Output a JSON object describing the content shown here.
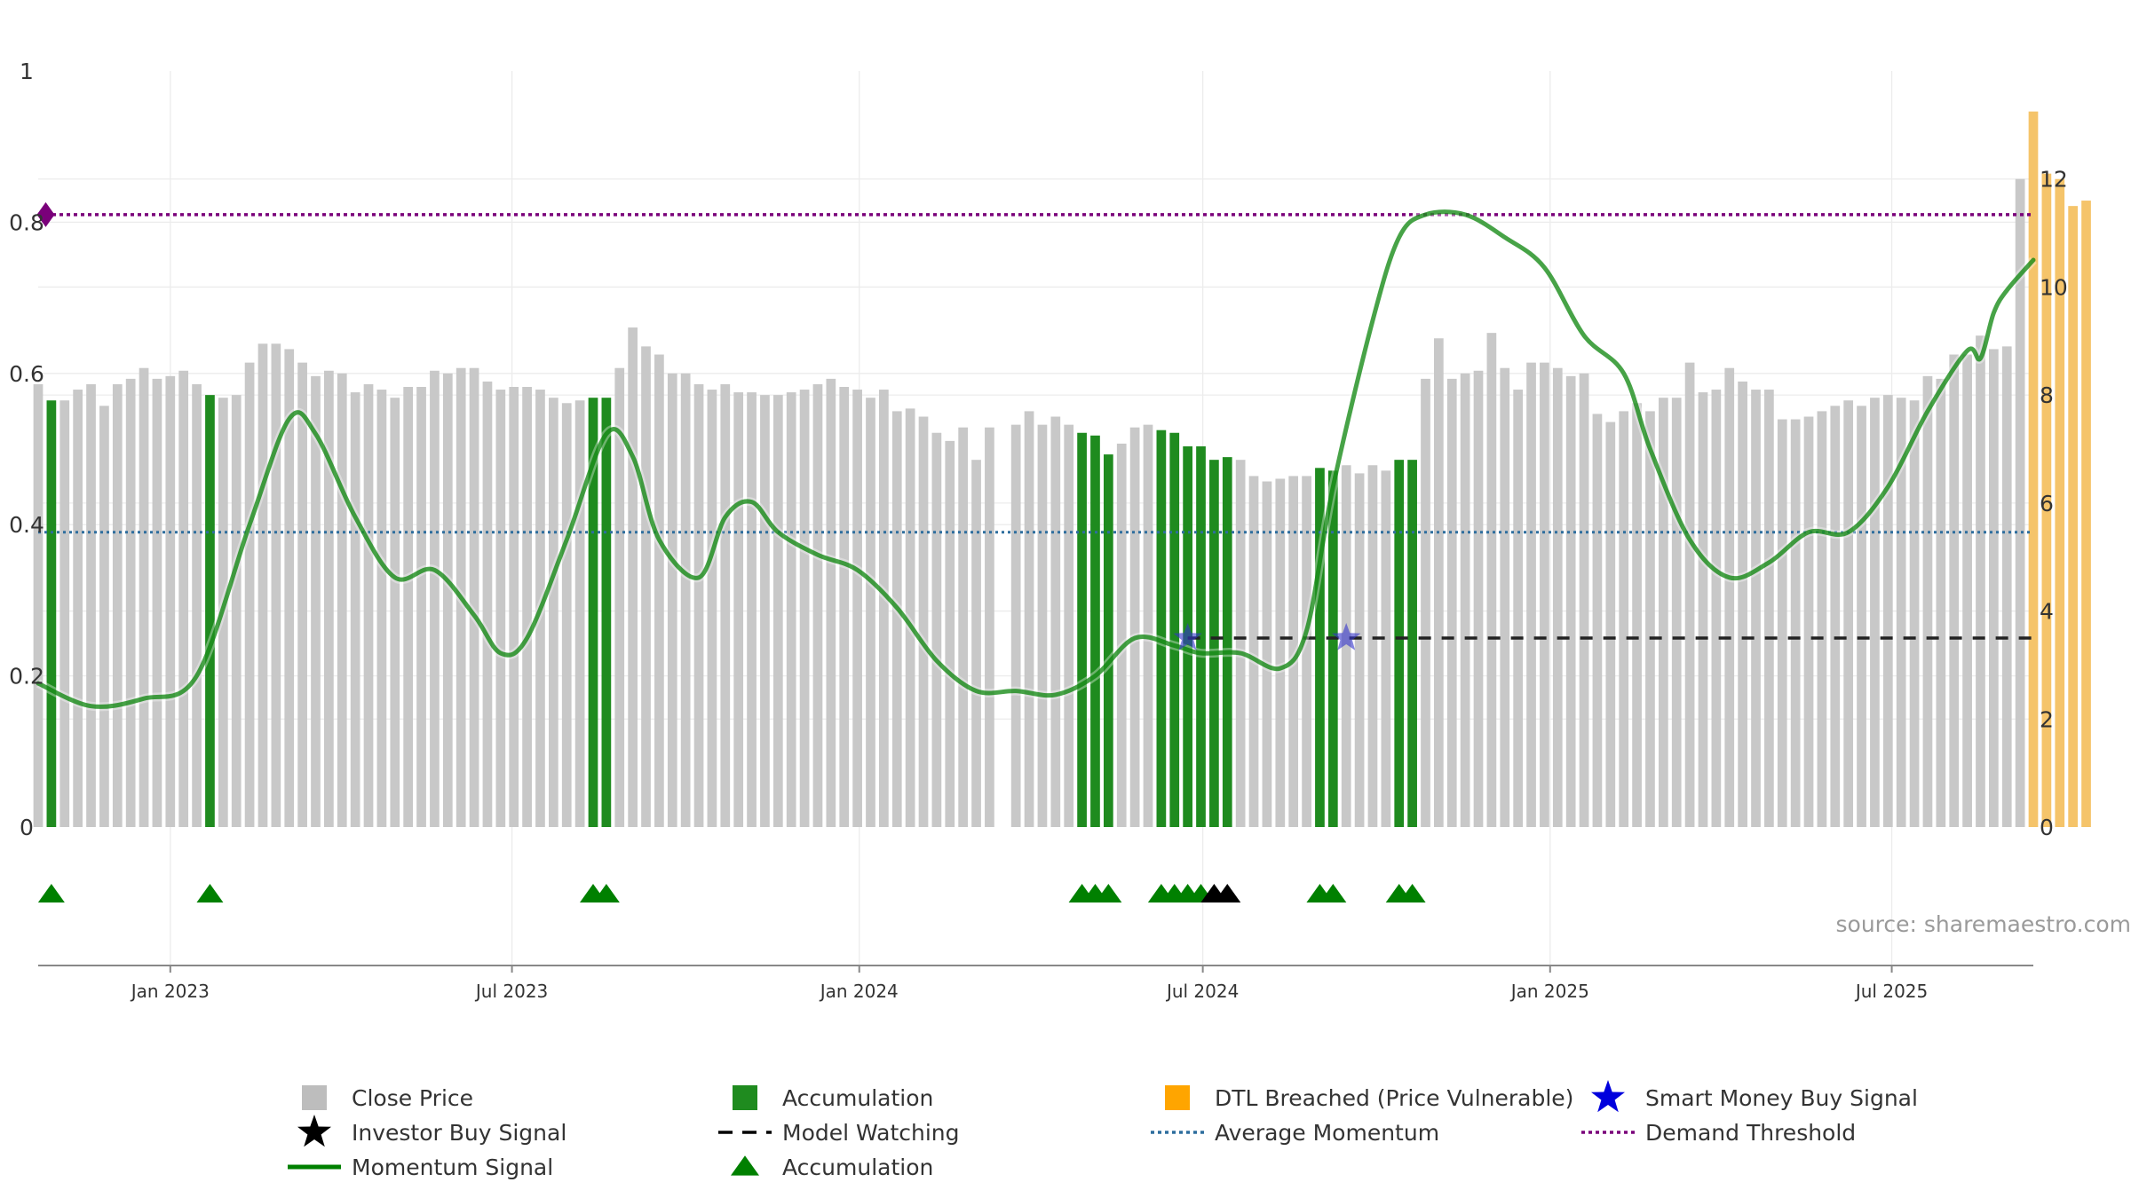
{
  "chart_data": {
    "type": "bar",
    "source_label": "source: sharemaestro.com",
    "left_axis": {
      "ylim": [
        0,
        1
      ],
      "ticks": [
        "0",
        "0.2",
        "0.4",
        "0.6",
        "0.8",
        "1"
      ],
      "tick_values": [
        0,
        0.2,
        0.4,
        0.6,
        0.8,
        1.0
      ]
    },
    "right_axis": {
      "ylim": [
        0,
        14
      ],
      "ticks": [
        "0",
        "2",
        "4",
        "6",
        "8",
        "10",
        "12"
      ],
      "tick_values": [
        0,
        2,
        4,
        6,
        8,
        10,
        12
      ]
    },
    "x_axis": {
      "range": [
        "2022-10-23",
        "2025-09-14"
      ],
      "ticks": [
        "Jan 2023",
        "Jul 2023",
        "Jan 2024",
        "Jul 2024",
        "Jan 2025",
        "Jul 2025"
      ],
      "tick_dates": [
        "2023-01-01",
        "2023-07-01",
        "2024-01-01",
        "2024-07-01",
        "2025-01-01",
        "2025-07-01"
      ]
    },
    "bars": {
      "start_date": "2022-10-23",
      "interval_days": 7,
      "values": [
        8.2,
        7.9,
        7.9,
        8.1,
        8.2,
        7.8,
        8.2,
        8.3,
        8.5,
        8.3,
        8.35,
        8.45,
        8.2,
        8.0,
        7.95,
        8.0,
        8.6,
        8.95,
        8.95,
        8.85,
        8.6,
        8.35,
        8.45,
        8.4,
        8.05,
        8.2,
        8.1,
        7.95,
        8.15,
        8.15,
        8.45,
        8.4,
        8.5,
        8.5,
        8.25,
        8.1,
        8.15,
        8.15,
        8.1,
        7.95,
        7.85,
        7.9,
        7.95,
        7.95,
        8.5,
        9.25,
        8.9,
        8.75,
        8.4,
        8.4,
        8.2,
        8.1,
        8.2,
        8.05,
        8.05,
        8.0,
        8.0,
        8.05,
        8.1,
        8.2,
        8.3,
        8.15,
        8.1,
        7.95,
        8.1,
        7.7,
        7.75,
        7.6,
        7.3,
        7.15,
        7.4,
        6.8,
        7.4,
        0,
        7.45,
        7.7,
        7.45,
        7.6,
        7.45,
        7.3,
        7.25,
        6.9,
        7.1,
        7.4,
        7.45,
        7.35,
        7.3,
        7.05,
        7.05,
        6.8,
        6.85,
        6.8,
        6.5,
        6.4,
        6.45,
        6.5,
        6.5,
        6.65,
        6.6,
        6.7,
        6.55,
        6.7,
        6.6,
        6.8,
        6.8,
        8.3,
        9.05,
        8.3,
        8.4,
        8.45,
        9.15,
        8.5,
        8.1,
        8.6,
        8.6,
        8.5,
        8.35,
        8.4,
        7.65,
        7.5,
        7.7,
        7.85,
        7.7,
        7.95,
        7.95,
        8.6,
        8.05,
        8.1,
        8.5,
        8.25,
        8.1,
        8.1,
        7.55,
        7.55,
        7.6,
        7.7,
        7.8,
        7.9,
        7.8,
        7.95,
        8.0,
        7.95,
        7.9,
        8.35,
        8.3,
        8.75,
        8.75,
        9.1,
        8.85,
        8.9,
        12.0,
        13.25,
        12.1,
        12.0,
        11.5,
        11.6
      ],
      "accumulation_indices": [
        1,
        13,
        42,
        43,
        79,
        80,
        81,
        85,
        86,
        87,
        88,
        89,
        90,
        97,
        98,
        103,
        104
      ],
      "dtl_breached_indices": [
        151,
        152,
        153,
        154,
        155,
        156
      ]
    },
    "momentum": {
      "x": [
        "2022-10-23",
        "2022-11-20",
        "2022-12-18",
        "2023-01-15",
        "2023-02-12",
        "2023-03-05",
        "2023-03-19",
        "2023-04-09",
        "2023-04-30",
        "2023-05-21",
        "2023-06-11",
        "2023-06-25",
        "2023-07-09",
        "2023-07-30",
        "2023-08-20",
        "2023-09-03",
        "2023-09-17",
        "2023-10-08",
        "2023-10-22",
        "2023-11-05",
        "2023-11-19",
        "2023-12-10",
        "2023-12-31",
        "2024-01-21",
        "2024-02-11",
        "2024-03-03",
        "2024-03-24",
        "2024-04-14",
        "2024-05-05",
        "2024-05-26",
        "2024-06-16",
        "2024-06-30",
        "2024-07-21",
        "2024-08-11",
        "2024-08-25",
        "2024-09-08",
        "2024-09-29",
        "2024-10-13",
        "2024-10-27",
        "2024-11-17",
        "2024-12-08",
        "2024-12-29",
        "2025-01-19",
        "2025-02-09",
        "2025-02-23",
        "2025-03-16",
        "2025-04-06",
        "2025-04-27",
        "2025-05-18",
        "2025-06-08",
        "2025-06-29",
        "2025-07-20",
        "2025-08-10",
        "2025-08-17",
        "2025-08-24",
        "2025-08-31",
        "2025-09-14"
      ],
      "y": [
        0.19,
        0.16,
        0.17,
        0.2,
        0.4,
        0.54,
        0.52,
        0.41,
        0.33,
        0.34,
        0.28,
        0.23,
        0.25,
        0.38,
        0.52,
        0.49,
        0.38,
        0.33,
        0.41,
        0.43,
        0.39,
        0.36,
        0.34,
        0.29,
        0.22,
        0.18,
        0.18,
        0.175,
        0.2,
        0.25,
        0.24,
        0.23,
        0.23,
        0.21,
        0.26,
        0.45,
        0.67,
        0.78,
        0.81,
        0.81,
        0.78,
        0.74,
        0.65,
        0.6,
        0.5,
        0.38,
        0.33,
        0.35,
        0.39,
        0.39,
        0.45,
        0.55,
        0.63,
        0.62,
        0.68,
        0.71,
        0.75
      ]
    },
    "average_momentum": 0.39,
    "demand_threshold": 0.81,
    "model_watching": {
      "y": 0.25,
      "x_range": [
        "2024-06-23",
        "2025-09-14"
      ]
    },
    "smart_money_signals": [
      {
        "x": "2024-06-23",
        "y": 0.25
      },
      {
        "x": "2024-09-15",
        "y": 0.25
      }
    ],
    "triangle_markers": {
      "accumulation_indices": [
        1,
        13,
        42,
        43,
        79,
        80,
        81,
        85,
        86,
        87,
        88,
        97,
        98,
        103,
        104
      ],
      "investor_buy_indices": [
        89,
        90
      ]
    },
    "demand_marker": {
      "x": "2022-10-27",
      "y": 0.81
    },
    "legend": {
      "position": "bottom",
      "items": [
        {
          "label": "Close Price",
          "kind": "square",
          "color": "#bdbdbd"
        },
        {
          "label": "Accumulation",
          "kind": "square",
          "color": "#1f8b1f"
        },
        {
          "label": "DTL Breached (Price Vulnerable)",
          "kind": "square",
          "color": "#ffa500"
        },
        {
          "label": "Smart Money Buy Signal",
          "kind": "star",
          "color": "#0000dd"
        },
        {
          "label": "Investor Buy Signal",
          "kind": "star",
          "color": "#000000"
        },
        {
          "label": "Model Watching",
          "kind": "dash",
          "color": "#000000"
        },
        {
          "label": "Average Momentum",
          "kind": "dotted",
          "color": "#2e6e9e"
        },
        {
          "label": "Demand Threshold",
          "kind": "dotted",
          "color": "#7a007a"
        },
        {
          "label": "Momentum Signal",
          "kind": "line",
          "color": "#008000"
        },
        {
          "label": "Accumulation",
          "kind": "triangle",
          "color": "#008000"
        }
      ]
    },
    "colors": {
      "close_price": "#c8c8c8",
      "accumulation": "#1f8b1f",
      "dtl_breached": "#f5c46a",
      "momentum": "#008000",
      "average_momentum": "#2e6e9e",
      "demand_threshold": "#7a007a",
      "smart_money": "#3333cc",
      "investor": "#000000",
      "grid": "#ececec",
      "axis": "#888888"
    }
  }
}
